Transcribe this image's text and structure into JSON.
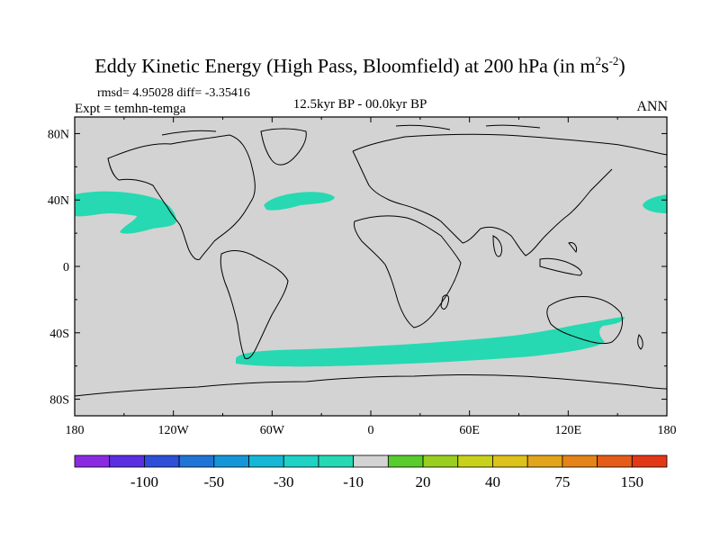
{
  "title": "Eddy Kinetic Energy (High Pass, Bloomfield) at 200 hPa (in m",
  "title_units": {
    "sup1": "2",
    "mid": "s",
    "sup2": "-2",
    "close": ")"
  },
  "stats": "rmsd= 4.95028 diff= -3.35416",
  "experiment": "Expt = temhn-temga",
  "period": "12.5kyr BP - 00.0kyr BP",
  "season": "ANN",
  "map": {
    "projection": "cylindrical equidistant",
    "land_fill": "#d3d3d3",
    "coast_color": "#000000",
    "lon_range": [
      -180,
      180
    ],
    "lat_range": [
      -90,
      90
    ],
    "lat_ticks": [
      "80N",
      "40N",
      "0",
      "40S",
      "80S"
    ],
    "lon_ticks": [
      "180",
      "120W",
      "60W",
      "0",
      "60E",
      "120E",
      "180"
    ]
  },
  "anomaly_regions": [
    {
      "name": "north-pacific-storm-track",
      "value_bin": "-30 to -10",
      "color": "#26d9b2"
    },
    {
      "name": "north-atlantic-storm-track",
      "value_bin": "-30 to -10",
      "color": "#26d9b2"
    },
    {
      "name": "southern-ocean-storm-track",
      "value_bin": "-30 to -10",
      "color": "#26d9b2"
    }
  ],
  "colorbar": {
    "colors": [
      "#8a2be2",
      "#5a2fe0",
      "#2f4fd8",
      "#1f74d6",
      "#1596d8",
      "#14b8d6",
      "#1fd2c6",
      "#26d9b2",
      "#d3d3d3",
      "#57cc2c",
      "#98cf20",
      "#c8d21a",
      "#dcc21a",
      "#e2a41a",
      "#e48418",
      "#e45c18",
      "#e23818"
    ],
    "labels": [
      "-100",
      "-50",
      "-30",
      "-10",
      "20",
      "40",
      "75",
      "150"
    ]
  }
}
